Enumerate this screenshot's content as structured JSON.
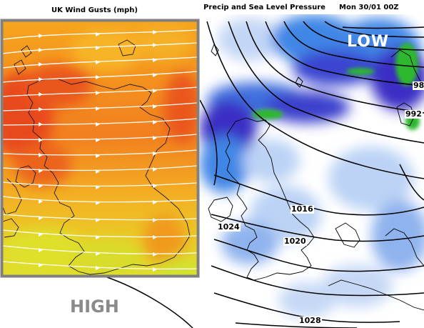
{
  "wind_panel": {
    "title": "UK Wind Gusts (mph)",
    "colors": {
      "strong": "#e8421b",
      "moderate": "#f59a1c",
      "light": "#eadc28",
      "border": "#808080",
      "streamline": "#ffffff"
    }
  },
  "precip_panel": {
    "title": "Precip and Sea Level Pressure",
    "date": "Mon 30/01 00Z",
    "colors": {
      "heavy": "#3a2fc4",
      "moderate": "#3f86e6",
      "light": "#bcd3f5",
      "snow": "#2fb82f",
      "isobar": "#000000"
    }
  },
  "pressure_labels": {
    "low": "LOW",
    "high": "HIGH"
  },
  "isobar_labels": [
    "1016",
    "1024",
    "1020",
    "1028",
    "992",
    "98"
  ]
}
